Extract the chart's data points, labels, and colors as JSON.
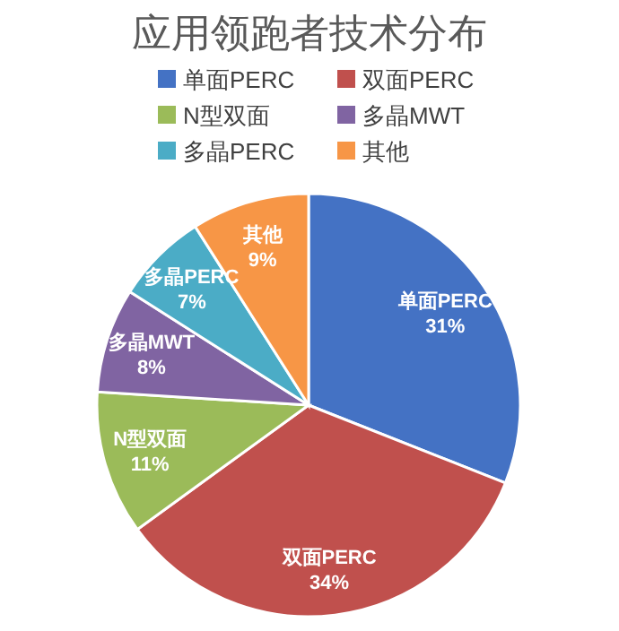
{
  "chart_data": {
    "type": "pie",
    "title": "应用领跑者技术分布",
    "categories": [
      "单面PERC",
      "双面PERC",
      "N型双面",
      "多晶MWT",
      "多晶PERC",
      "其他"
    ],
    "values": [
      31,
      34,
      11,
      8,
      7,
      9
    ],
    "value_labels": [
      "31%",
      "34%",
      "11%",
      "8%",
      "7%",
      "9%"
    ],
    "colors": [
      "#4472c4",
      "#c0504d",
      "#9bbb59",
      "#8064a2",
      "#4bacc6",
      "#f79646"
    ],
    "legend": "top"
  }
}
